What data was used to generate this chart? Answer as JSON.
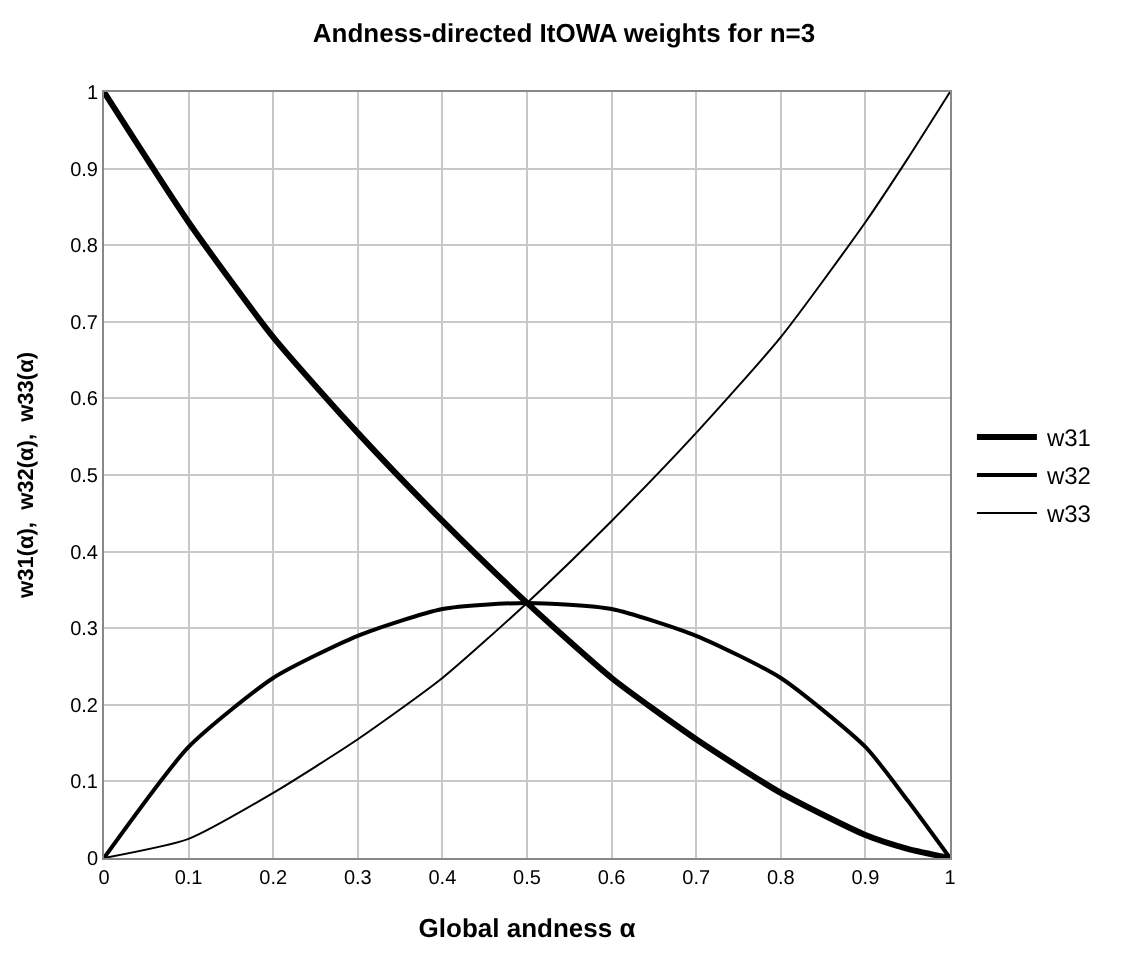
{
  "chart_data": {
    "type": "line",
    "title": "Andness-directed ItOWA weights for n=3",
    "xlabel": "Global andness α",
    "ylabel": "w31(α),  w32(α),  w33(α)",
    "x": [
      0,
      0.1,
      0.2,
      0.3,
      0.4,
      0.5,
      0.6,
      0.7,
      0.8,
      0.9,
      0.95,
      1
    ],
    "series": [
      {
        "name": "w31",
        "color": "#000000",
        "values": [
          1,
          0.83,
          0.68,
          0.555,
          0.44,
          0.333,
          0.235,
          0.155,
          0.085,
          0.03,
          0.012,
          0
        ]
      },
      {
        "name": "w32",
        "color": "#000000",
        "values": [
          0,
          0.145,
          0.235,
          0.29,
          0.325,
          0.333,
          0.325,
          0.29,
          0.235,
          0.145,
          0.075,
          0
        ]
      },
      {
        "name": "w33",
        "color": "#000000",
        "values": [
          0,
          0.025,
          0.085,
          0.155,
          0.235,
          0.333,
          0.44,
          0.555,
          0.68,
          0.83,
          0.913,
          1
        ]
      }
    ],
    "xlim": [
      0,
      1
    ],
    "ylim": [
      0,
      1
    ],
    "xticks": [
      0,
      0.1,
      0.2,
      0.3,
      0.4,
      0.5,
      0.6,
      0.7,
      0.8,
      0.9,
      1
    ],
    "yticks": [
      0,
      0.1,
      0.2,
      0.3,
      0.4,
      0.5,
      0.6,
      0.7,
      0.8,
      0.9,
      1
    ],
    "grid": true,
    "legend": "right",
    "marker": "none",
    "line_style": "solid"
  }
}
